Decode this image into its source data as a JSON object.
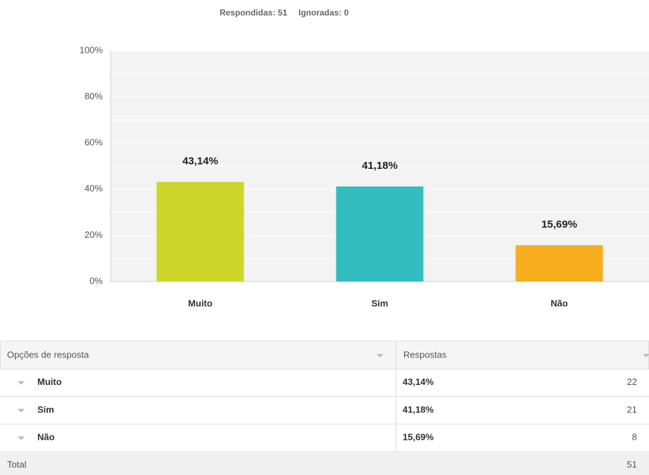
{
  "summary": {
    "answered": "Respondidas: 51",
    "skipped": "Ignoradas: 0"
  },
  "chart_data": {
    "type": "bar",
    "categories": [
      "Muito",
      "Sim",
      "Não"
    ],
    "values": [
      43.14,
      41.18,
      15.69
    ],
    "value_labels": [
      "43,14%",
      "41,18%",
      "15,69%"
    ],
    "colors": [
      "#cdd42a",
      "#33bdbf",
      "#f6ae1e"
    ],
    "ylim": [
      0,
      100
    ],
    "yticks": [
      {
        "value": 0,
        "label": "0%"
      },
      {
        "value": 20,
        "label": "20%"
      },
      {
        "value": 40,
        "label": "40%"
      },
      {
        "value": 60,
        "label": "60%"
      },
      {
        "value": 80,
        "label": "80%"
      },
      {
        "value": 100,
        "label": "100%"
      }
    ],
    "minor_yticks": [
      10,
      30,
      50,
      70,
      90
    ],
    "grid": true
  },
  "table": {
    "headers": [
      "Opções de resposta",
      "Respostas"
    ],
    "counts": [
      "22",
      "21",
      "8"
    ],
    "total_label": "Total",
    "total": "51"
  }
}
